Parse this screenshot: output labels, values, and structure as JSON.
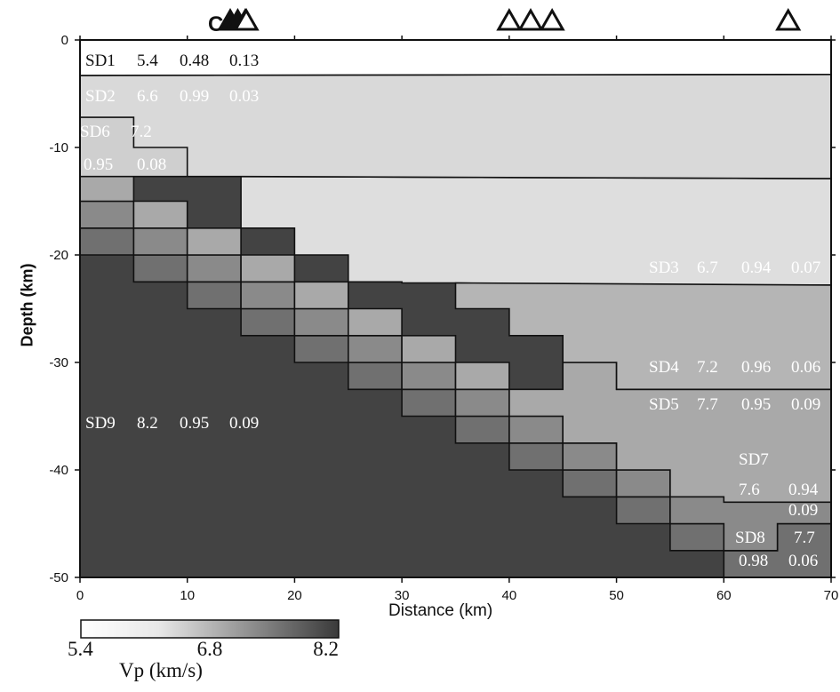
{
  "model": {
    "layers": [
      {
        "id": "SD1",
        "vp": "5.4",
        "a": "0.48",
        "b": "0.13"
      },
      {
        "id": "SD2",
        "vp": "6.6",
        "a": "0.99",
        "b": "0.03"
      },
      {
        "id": "SD6",
        "vp": "7.2",
        "a": "0.95",
        "b": "0.08"
      },
      {
        "id": "SD3",
        "vp": "6.7",
        "a": "0.94",
        "b": "0.07"
      },
      {
        "id": "SD4",
        "vp": "7.2",
        "a": "0.96",
        "b": "0.06"
      },
      {
        "id": "SD5",
        "vp": "7.7",
        "a": "0.95",
        "b": "0.09"
      },
      {
        "id": "SD7",
        "vp": "7.6",
        "a": "0.94",
        "b": "0.09"
      },
      {
        "id": "SD8",
        "vp": "7.7",
        "a": "0.98",
        "b": "0.06"
      },
      {
        "id": "SD9",
        "vp": "8.2",
        "a": "0.95",
        "b": "0.09"
      }
    ],
    "stations_km": [
      15.5,
      40,
      42,
      44,
      66
    ],
    "clustered_stations_km": [
      14,
      14.7,
      15.4
    ],
    "station_cluster_letter": "C"
  },
  "axes": {
    "xlabel": "Distance (km)",
    "ylabel": "Depth (km)",
    "xlim": [
      0,
      70
    ],
    "ylim": [
      -50,
      0
    ],
    "xticks": [
      "0",
      "10",
      "20",
      "30",
      "40",
      "50",
      "60",
      "70"
    ],
    "yticks": [
      "0",
      "-10",
      "-20",
      "-30",
      "-40",
      "-50"
    ]
  },
  "colorbar": {
    "label": "Vp (km/s)",
    "min_label": "5.4",
    "mid_label": "6.8",
    "max_label": "8.2"
  },
  "colors": {
    "SD1": "#ffffff",
    "SD2": "#d9d9d9",
    "SD6": "#d9d9d9",
    "SD3": "#dedede",
    "SD4": "#a9a9a9",
    "SD5": "#8a8a8a",
    "SD7": "#8a8a8a",
    "SD8": "#707070",
    "SD9": "#434343"
  }
}
